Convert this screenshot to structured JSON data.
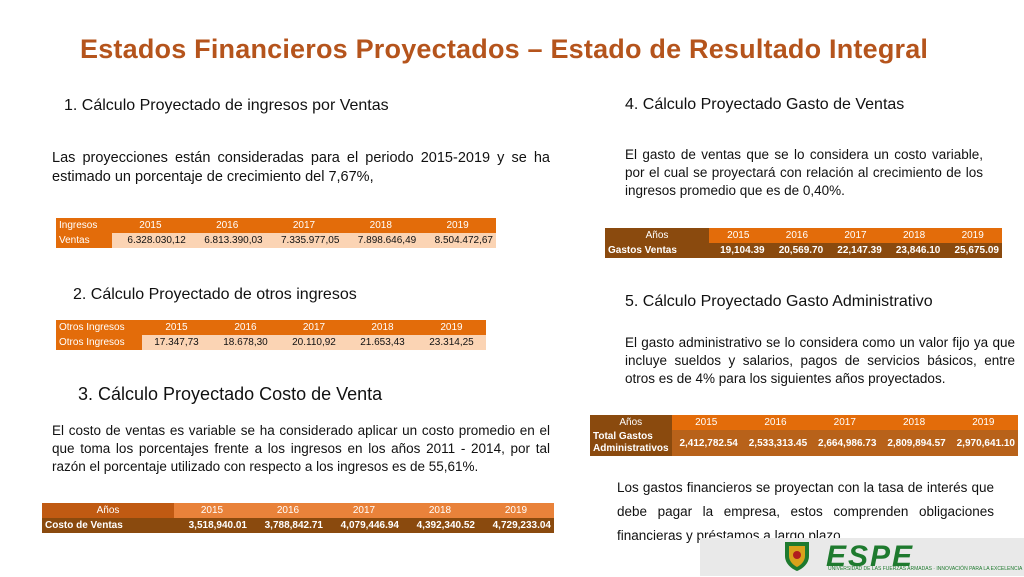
{
  "title": "Estados Financieros Proyectados – Estado de Resultado Integral",
  "s1": {
    "heading": "1. Cálculo Proyectado de ingresos por Ventas",
    "para": "Las proyecciones están consideradas para el periodo 2015-2019 y se ha estimado un porcentaje de crecimiento del 7,67%,",
    "header": [
      "Ingresos",
      "2015",
      "2016",
      "2017",
      "2018",
      "2019"
    ],
    "row": [
      "Ventas",
      "6.328.030,12",
      "6.813.390,03",
      "7.335.977,05",
      "7.898.646,49",
      "8.504.472,67"
    ]
  },
  "s2": {
    "heading": "2. Cálculo Proyectado de otros ingresos",
    "header": [
      "Otros Ingresos",
      "2015",
      "2016",
      "2017",
      "2018",
      "2019"
    ],
    "row": [
      "Otros Ingresos",
      "17.347,73",
      "18.678,30",
      "20.110,92",
      "21.653,43",
      "23.314,25"
    ]
  },
  "s3": {
    "heading": "3. Cálculo Proyectado Costo de Venta",
    "para": "El costo de ventas es variable se ha considerado aplicar un costo promedio en el que toma los porcentajes frente a los ingresos en los años 2011 - 2014, por tal razón el porcentaje utilizado con respecto a los ingresos es de 55,61%.",
    "header": [
      "Años",
      "2015",
      "2016",
      "2017",
      "2018",
      "2019"
    ],
    "row": [
      "Costo de Ventas",
      "3,518,940.01",
      "3,788,842.71",
      "4,079,446.94",
      "4,392,340.52",
      "4,729,233.04"
    ]
  },
  "s4": {
    "heading": "4. Cálculo Proyectado Gasto de Ventas",
    "para": "El gasto de ventas que se lo considera un costo variable, por el cual se proyectará con relación al crecimiento de los ingresos promedio que es de 0,40%.",
    "header": [
      "Años",
      "2015",
      "2016",
      "2017",
      "2018",
      "2019"
    ],
    "row": [
      "Gastos Ventas",
      "19,104.39",
      "20,569.70",
      "22,147.39",
      "23,846.10",
      "25,675.09"
    ]
  },
  "s5": {
    "heading": "5. Cálculo Proyectado Gasto Administrativo",
    "para": "El gasto administrativo se lo considera como un valor fijo ya que incluye sueldos y salarios, pagos de servicios básicos, entre otros es de 4% para los siguientes años proyectados.",
    "header": [
      "Años",
      "2015",
      "2016",
      "2017",
      "2018",
      "2019"
    ],
    "row_label_1": "Total Gastos",
    "row_label_2": "Administrativos",
    "row": [
      "2,412,782.54",
      "2,533,313.45",
      "2,664,986.73",
      "2,809,894.57",
      "2,970,641.10"
    ]
  },
  "s6": {
    "para": "Los gastos financieros se proyectan con la tasa de interés que debe pagar la empresa, estos comprenden obligaciones financieras y préstamos a largo plazo."
  },
  "logo": {
    "name": "ESPE",
    "subtitle": "UNIVERSIDAD DE LAS FUERZAS ARMADAS",
    "motto": "INNOVACIÓN PARA LA EXCELENCIA"
  },
  "colors": {
    "title": "#b5541c",
    "table_header": "#e36c0a",
    "table_row": "#fbd4b4",
    "dark_header": "#c05a12",
    "dark_row": "#8a4a0e",
    "logo_green": "#1e7a2e"
  }
}
